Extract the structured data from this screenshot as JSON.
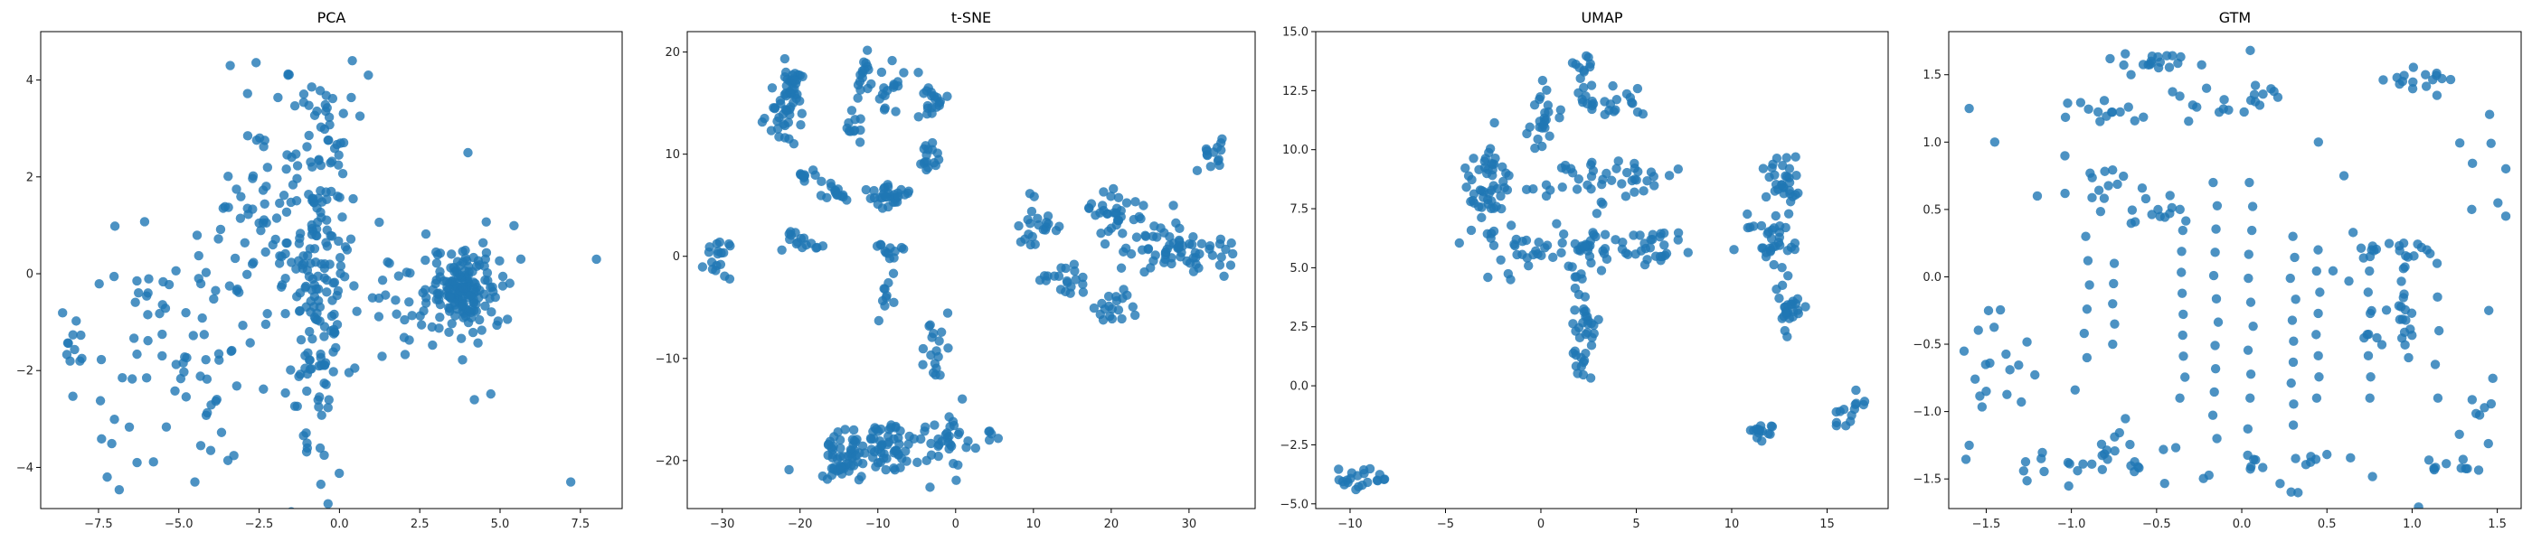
{
  "chart_data": [
    {
      "type": "scatter",
      "title": "PCA",
      "xlabel": "",
      "ylabel": "",
      "xlim": [
        -9.3,
        8.8
      ],
      "ylim": [
        -4.85,
        5.0
      ],
      "xticks": [
        -7.5,
        -5.0,
        -2.5,
        0.0,
        2.5,
        5.0,
        7.5
      ],
      "yticks": [
        -4,
        -2,
        0,
        2,
        4
      ],
      "tick_labels_x": [
        "−7.5",
        "−5.0",
        "−2.5",
        "0.0",
        "2.5",
        "5.0",
        "7.5"
      ],
      "tick_labels_y": [
        "−4",
        "−2",
        "0",
        "2",
        "4"
      ],
      "grid": false,
      "color": "#1f77b4",
      "alpha": 0.8,
      "clusters": [
        {
          "cx": -0.6,
          "cy": -0.5,
          "sx": 0.45,
          "sy": 1.6,
          "n": 120
        },
        {
          "cx": -2.0,
          "cy": 0.8,
          "sx": 1.1,
          "sy": 1.3,
          "n": 110
        },
        {
          "cx": -5.2,
          "cy": -1.8,
          "sx": 1.3,
          "sy": 1.3,
          "n": 70
        },
        {
          "cx": 3.9,
          "cy": -0.3,
          "sx": 0.55,
          "sy": 0.35,
          "n": 140
        },
        {
          "cx": 2.6,
          "cy": -0.5,
          "sx": 1.3,
          "sy": 0.9,
          "n": 60
        },
        {
          "cx": -0.3,
          "cy": 3.0,
          "sx": 0.6,
          "sy": 0.6,
          "n": 30
        },
        {
          "cx": -8.4,
          "cy": -1.5,
          "sx": 0.2,
          "sy": 0.35,
          "n": 12
        }
      ],
      "points": [
        {
          "x": -3.4,
          "y": 4.3
        },
        {
          "x": -1.6,
          "y": 4.1
        },
        {
          "x": 0.4,
          "y": 4.4
        },
        {
          "x": 0.9,
          "y": 4.1
        },
        {
          "x": 7.2,
          "y": -4.3
        },
        {
          "x": 8.0,
          "y": 0.3
        },
        {
          "x": -4.5,
          "y": -4.3
        },
        {
          "x": -6.3,
          "y": -3.9
        },
        {
          "x": 4.0,
          "y": 2.5
        },
        {
          "x": 4.2,
          "y": -2.6
        },
        {
          "x": -1.0,
          "y": -3.6
        },
        {
          "x": -0.6,
          "y": -3.6
        }
      ]
    },
    {
      "type": "scatter",
      "title": "t-SNE",
      "xlabel": "",
      "ylabel": "",
      "xlim": [
        -34.5,
        38.5
      ],
      "ylim": [
        -24.7,
        22.0
      ],
      "xticks": [
        -30,
        -20,
        -10,
        0,
        10,
        20,
        30
      ],
      "yticks": [
        -20,
        -10,
        0,
        10,
        20
      ],
      "tick_labels_x": [
        "−30",
        "−20",
        "−10",
        "0",
        "10",
        "20",
        "30"
      ],
      "tick_labels_y": [
        "−20",
        "−10",
        "0",
        "10",
        "20"
      ],
      "grid": false,
      "color": "#1f77b4",
      "alpha": 0.8,
      "clusters": [
        {
          "cx": -21,
          "cy": 17,
          "sx": 0.8,
          "sy": 1.2,
          "n": 28
        },
        {
          "cx": -22,
          "cy": 13.5,
          "sx": 1.2,
          "sy": 1.4,
          "n": 30
        },
        {
          "cx": -12,
          "cy": 17.5,
          "sx": 1.0,
          "sy": 1.0,
          "n": 15
        },
        {
          "cx": -7.5,
          "cy": 16,
          "sx": 1.5,
          "sy": 1.2,
          "n": 18
        },
        {
          "cx": -3,
          "cy": 15,
          "sx": 0.8,
          "sy": 1.0,
          "n": 18
        },
        {
          "cx": -13,
          "cy": 13,
          "sx": 0.5,
          "sy": 1.2,
          "n": 12
        },
        {
          "cx": -8.5,
          "cy": 5.8,
          "sx": 1.3,
          "sy": 0.6,
          "n": 30
        },
        {
          "cx": -3,
          "cy": 9.8,
          "sx": 0.6,
          "sy": 0.8,
          "n": 16
        },
        {
          "cx": -15,
          "cy": 6.3,
          "sx": 1.0,
          "sy": 0.5,
          "n": 14
        },
        {
          "cx": -19,
          "cy": 7.8,
          "sx": 0.8,
          "sy": 0.5,
          "n": 10
        },
        {
          "cx": -20,
          "cy": 1.3,
          "sx": 1.2,
          "sy": 0.6,
          "n": 16
        },
        {
          "cx": -30.5,
          "cy": 0.5,
          "sx": 0.9,
          "sy": 1.3,
          "n": 18
        },
        {
          "cx": -8.5,
          "cy": 0.5,
          "sx": 1.0,
          "sy": 0.8,
          "n": 12
        },
        {
          "cx": -9,
          "cy": -4,
          "sx": 0.6,
          "sy": 1.2,
          "n": 10
        },
        {
          "cx": 10.5,
          "cy": 3.2,
          "sx": 1.3,
          "sy": 1.3,
          "n": 22
        },
        {
          "cx": 20.5,
          "cy": 4.3,
          "sx": 1.5,
          "sy": 1.1,
          "n": 32
        },
        {
          "cx": 28,
          "cy": 0.5,
          "sx": 4.0,
          "sy": 1.4,
          "n": 70
        },
        {
          "cx": 33,
          "cy": 9.5,
          "sx": 1.0,
          "sy": 1.0,
          "n": 14
        },
        {
          "cx": 14,
          "cy": -2.5,
          "sx": 1.6,
          "sy": 0.8,
          "n": 20
        },
        {
          "cx": 20,
          "cy": -5.2,
          "sx": 1.5,
          "sy": 0.7,
          "n": 18
        },
        {
          "cx": -10,
          "cy": -18.5,
          "sx": 4.0,
          "sy": 1.2,
          "n": 90
        },
        {
          "cx": -14.5,
          "cy": -20.5,
          "sx": 1.3,
          "sy": 0.9,
          "n": 28
        },
        {
          "cx": -1,
          "cy": -18.5,
          "sx": 1.4,
          "sy": 1.4,
          "n": 28
        },
        {
          "cx": -2.5,
          "cy": -9.5,
          "sx": 0.8,
          "sy": 1.6,
          "n": 18
        },
        {
          "cx": 4.5,
          "cy": -17.4,
          "sx": 0.5,
          "sy": 0.3,
          "n": 5
        }
      ],
      "points": []
    },
    {
      "type": "scatter",
      "title": "UMAP",
      "xlabel": "",
      "ylabel": "",
      "xlim": [
        -11.8,
        18.2
      ],
      "ylim": [
        -5.2,
        15.0
      ],
      "xticks": [
        -10,
        -5,
        0,
        5,
        10,
        15
      ],
      "yticks": [
        -5.0,
        -2.5,
        0.0,
        2.5,
        5.0,
        7.5,
        10.0,
        12.5,
        15.0
      ],
      "tick_labels_x": [
        "−10",
        "−5",
        "0",
        "5",
        "10",
        "15"
      ],
      "tick_labels_y": [
        "−5.0",
        "−2.5",
        "0.0",
        "2.5",
        "5.0",
        "7.5",
        "10.0",
        "12.5",
        "15.0"
      ],
      "grid": false,
      "color": "#1f77b4",
      "alpha": 0.8,
      "clusters": [
        {
          "cx": -3.0,
          "cy": 8.0,
          "sx": 0.5,
          "sy": 1.2,
          "n": 50
        },
        {
          "cx": 0.0,
          "cy": 11.3,
          "sx": 0.4,
          "sy": 0.6,
          "n": 22
        },
        {
          "cx": 2.3,
          "cy": 13.2,
          "sx": 0.4,
          "sy": 0.6,
          "n": 14
        },
        {
          "cx": 3.5,
          "cy": 12.0,
          "sx": 0.7,
          "sy": 0.35,
          "n": 22
        },
        {
          "cx": 2.3,
          "cy": 8.8,
          "sx": 1.3,
          "sy": 0.4,
          "n": 22
        },
        {
          "cx": 5.5,
          "cy": 8.7,
          "sx": 0.6,
          "sy": 0.4,
          "n": 15
        },
        {
          "cx": 2.5,
          "cy": 5.5,
          "sx": 1.0,
          "sy": 1.2,
          "n": 45
        },
        {
          "cx": 2.2,
          "cy": 2.5,
          "sx": 0.4,
          "sy": 1.0,
          "n": 35
        },
        {
          "cx": 5.8,
          "cy": 5.8,
          "sx": 0.9,
          "sy": 0.5,
          "n": 25
        },
        {
          "cx": -0.7,
          "cy": 5.5,
          "sx": 0.6,
          "sy": 0.8,
          "n": 18
        },
        {
          "cx": -1.3,
          "cy": 8.5,
          "sx": 1.0,
          "sy": 1.0,
          "n": 15
        },
        {
          "cx": 12.7,
          "cy": 8.5,
          "sx": 0.5,
          "sy": 0.6,
          "n": 30
        },
        {
          "cx": 12.0,
          "cy": 6.2,
          "sx": 0.9,
          "sy": 0.8,
          "n": 35
        },
        {
          "cx": 13.0,
          "cy": 3.3,
          "sx": 0.4,
          "sy": 0.6,
          "n": 25
        },
        {
          "cx": 11.5,
          "cy": -1.9,
          "sx": 0.35,
          "sy": 0.2,
          "n": 16
        },
        {
          "cx": 16.3,
          "cy": -1.3,
          "sx": 0.5,
          "sy": 0.5,
          "n": 14
        },
        {
          "cx": -9.5,
          "cy": -3.9,
          "sx": 0.8,
          "sy": 0.22,
          "n": 22
        }
      ],
      "points": []
    },
    {
      "type": "scatter",
      "title": "GTM",
      "xlabel": "",
      "ylabel": "",
      "xlim": [
        -1.72,
        1.64
      ],
      "ylim": [
        -1.72,
        1.82
      ],
      "xticks": [
        -1.5,
        -1.0,
        -0.5,
        0.0,
        0.5,
        1.0,
        1.5
      ],
      "yticks": [
        -1.5,
        -1.0,
        -0.5,
        0.0,
        0.5,
        1.0,
        1.5
      ],
      "tick_labels_x": [
        "−1.5",
        "−1.0",
        "−0.5",
        "0.0",
        "0.5",
        "1.0",
        "1.5"
      ],
      "tick_labels_y": [
        "−1.5",
        "−1.0",
        "−0.5",
        "0.0",
        "0.5",
        "1.0",
        "1.5"
      ],
      "grid": false,
      "color": "#1f77b4",
      "alpha": 0.8,
      "columns": [
        {
          "x": -0.15,
          "y0": -1.2,
          "y1": 0.7,
          "n": 12
        },
        {
          "x": -0.35,
          "y0": -0.9,
          "y1": 0.5,
          "n": 10
        },
        {
          "x": 0.05,
          "y0": -0.9,
          "y1": 0.7,
          "n": 10
        },
        {
          "x": 0.3,
          "y0": -1.1,
          "y1": 0.3,
          "n": 10
        },
        {
          "x": 0.45,
          "y0": -0.9,
          "y1": 0.2,
          "n": 8
        },
        {
          "x": 0.75,
          "y0": -0.9,
          "y1": 0.2,
          "n": 8
        },
        {
          "x": 0.95,
          "y0": -0.6,
          "y1": 0.25,
          "n": 10
        },
        {
          "x": -0.75,
          "y0": -0.5,
          "y1": 0.1,
          "n": 5
        },
        {
          "x": -0.9,
          "y0": -0.6,
          "y1": 0.3,
          "n": 6
        },
        {
          "x": 1.15,
          "y0": -0.9,
          "y1": 0.1,
          "n": 5
        }
      ],
      "clusters": [
        {
          "cx": -0.5,
          "cy": 1.6,
          "sx": 0.12,
          "sy": 0.03,
          "n": 18
        },
        {
          "cx": 1.05,
          "cy": 1.45,
          "sx": 0.15,
          "sy": 0.05,
          "n": 16
        },
        {
          "cx": -0.85,
          "cy": 1.22,
          "sx": 0.15,
          "sy": 0.05,
          "n": 14
        },
        {
          "cx": -0.2,
          "cy": 1.25,
          "sx": 0.15,
          "sy": 0.08,
          "n": 12
        },
        {
          "cx": 0.1,
          "cy": 1.35,
          "sx": 0.08,
          "sy": 0.05,
          "n": 8
        },
        {
          "cx": -0.8,
          "cy": 0.7,
          "sx": 0.12,
          "sy": 0.08,
          "n": 12
        },
        {
          "cx": -0.5,
          "cy": 0.45,
          "sx": 0.15,
          "sy": 0.1,
          "n": 14
        },
        {
          "cx": 0.9,
          "cy": 0.2,
          "sx": 0.2,
          "sy": 0.05,
          "n": 18
        },
        {
          "cx": 0.85,
          "cy": -0.35,
          "sx": 0.12,
          "sy": 0.12,
          "n": 16
        },
        {
          "cx": -0.8,
          "cy": -1.35,
          "sx": 0.3,
          "sy": 0.12,
          "n": 35
        },
        {
          "cx": 0.3,
          "cy": -1.35,
          "sx": 0.3,
          "sy": 0.15,
          "n": 18
        },
        {
          "cx": 1.25,
          "cy": -1.4,
          "sx": 0.1,
          "sy": 0.04,
          "n": 10
        },
        {
          "cx": 1.45,
          "cy": -1.05,
          "sx": 0.07,
          "sy": 0.15,
          "n": 8
        },
        {
          "cx": -1.5,
          "cy": -0.5,
          "sx": 0.05,
          "sy": 0.35,
          "n": 10
        },
        {
          "cx": -1.2,
          "cy": -0.7,
          "sx": 0.15,
          "sy": 0.15,
          "n": 8
        },
        {
          "cx": 1.4,
          "cy": 0.9,
          "sx": 0.1,
          "sy": 0.2,
          "n": 6
        }
      ],
      "points": [
        {
          "x": -1.6,
          "y": 1.25
        },
        {
          "x": -1.45,
          "y": 1.0
        },
        {
          "x": -1.6,
          "y": -1.25
        },
        {
          "x": -1.5,
          "y": -0.85
        },
        {
          "x": 0.05,
          "y": 1.68
        },
        {
          "x": -0.65,
          "y": 1.5
        },
        {
          "x": 1.55,
          "y": 0.45
        },
        {
          "x": 1.45,
          "y": -0.25
        },
        {
          "x": -1.2,
          "y": 0.6
        },
        {
          "x": 0.6,
          "y": 0.75
        },
        {
          "x": 0.45,
          "y": 1.0
        },
        {
          "x": 1.35,
          "y": 0.5
        }
      ]
    }
  ]
}
